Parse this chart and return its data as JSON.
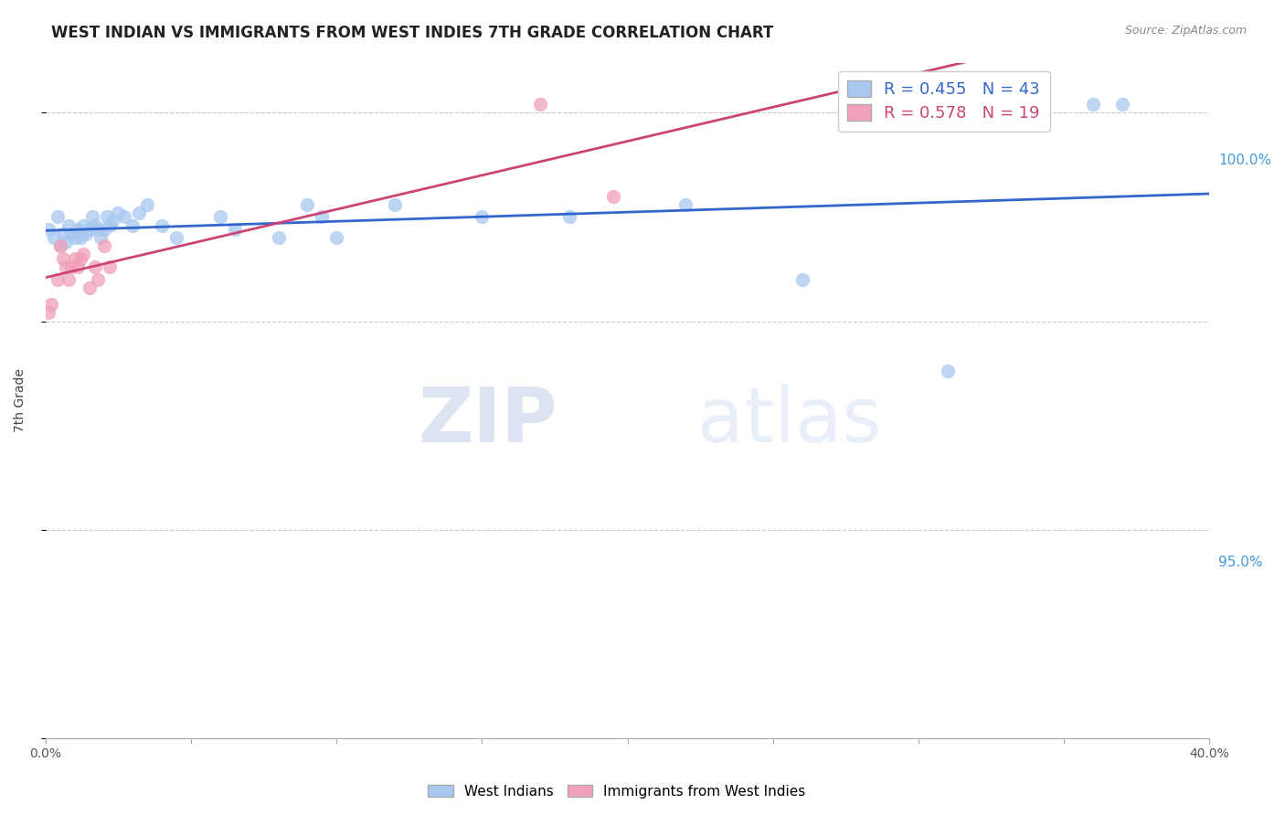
{
  "title": "WEST INDIAN VS IMMIGRANTS FROM WEST INDIES 7TH GRADE CORRELATION CHART",
  "source": "Source: ZipAtlas.com",
  "ylabel": "7th Grade",
  "xlim": [
    0.0,
    0.4
  ],
  "ylim": [
    0.928,
    1.012
  ],
  "yticks": [
    0.95,
    1.0
  ],
  "ytick_labels": [
    "95.0%",
    "100.0%"
  ],
  "yticks_minor": [
    0.85,
    0.9,
    0.95,
    1.0
  ],
  "grid_yticks": [
    0.95,
    1.0
  ],
  "xticks": [
    0.0,
    0.05,
    0.1,
    0.15,
    0.2,
    0.25,
    0.3,
    0.35,
    0.4
  ],
  "xtick_labels": [
    "0.0%",
    "",
    "",
    "",
    "",
    "",
    "",
    "",
    "40.0%"
  ],
  "blue_color": "#A8C8F0",
  "pink_color": "#F0A0B8",
  "blue_line_color": "#3366CC",
  "pink_line_color": "#CC4477",
  "R_blue": 0.455,
  "N_blue": 43,
  "R_pink": 0.578,
  "N_pink": 19,
  "blue_scatter_x": [
    0.001,
    0.003,
    0.004,
    0.005,
    0.006,
    0.007,
    0.008,
    0.009,
    0.01,
    0.011,
    0.012,
    0.013,
    0.014,
    0.015,
    0.016,
    0.017,
    0.018,
    0.019,
    0.02,
    0.021,
    0.022,
    0.023,
    0.025,
    0.027,
    0.03,
    0.032,
    0.035,
    0.04,
    0.045,
    0.06,
    0.065,
    0.08,
    0.09,
    0.095,
    0.1,
    0.12,
    0.15,
    0.18,
    0.22,
    0.26,
    0.31,
    0.36,
    0.37
  ],
  "blue_scatter_y": [
    0.972,
    0.97,
    0.975,
    0.968,
    0.971,
    0.969,
    0.973,
    0.971,
    0.97,
    0.972,
    0.97,
    0.973,
    0.971,
    0.972,
    0.975,
    0.973,
    0.972,
    0.97,
    0.972,
    0.975,
    0.973,
    0.974,
    0.976,
    0.975,
    0.973,
    0.976,
    0.978,
    0.973,
    0.97,
    0.975,
    0.972,
    0.97,
    0.978,
    0.975,
    0.97,
    0.978,
    0.975,
    0.975,
    0.978,
    0.96,
    0.938,
    1.002,
    1.002
  ],
  "pink_scatter_x": [
    0.001,
    0.002,
    0.004,
    0.005,
    0.006,
    0.007,
    0.008,
    0.009,
    0.01,
    0.011,
    0.012,
    0.013,
    0.015,
    0.017,
    0.018,
    0.02,
    0.022,
    0.17,
    0.195
  ],
  "pink_scatter_y": [
    0.952,
    0.954,
    0.96,
    0.968,
    0.965,
    0.963,
    0.96,
    0.963,
    0.965,
    0.963,
    0.965,
    0.966,
    0.958,
    0.963,
    0.96,
    0.968,
    0.963,
    1.002,
    0.98
  ],
  "watermark_ZIP": "ZIP",
  "watermark_atlas": "atlas",
  "background_color": "#ffffff",
  "grid_color": "#cccccc",
  "legend_fontsize": 13,
  "title_fontsize": 12,
  "right_tick_color": "#4499DD",
  "marker_size": 110,
  "right_yticks": [
    0.95,
    1.0
  ],
  "right_ytick_labels": [
    "95.0%",
    "100.0%"
  ],
  "extra_grid_yticks": [
    0.85,
    0.9
  ],
  "full_grid_yticks": [
    0.85,
    0.9,
    0.95,
    1.0
  ]
}
